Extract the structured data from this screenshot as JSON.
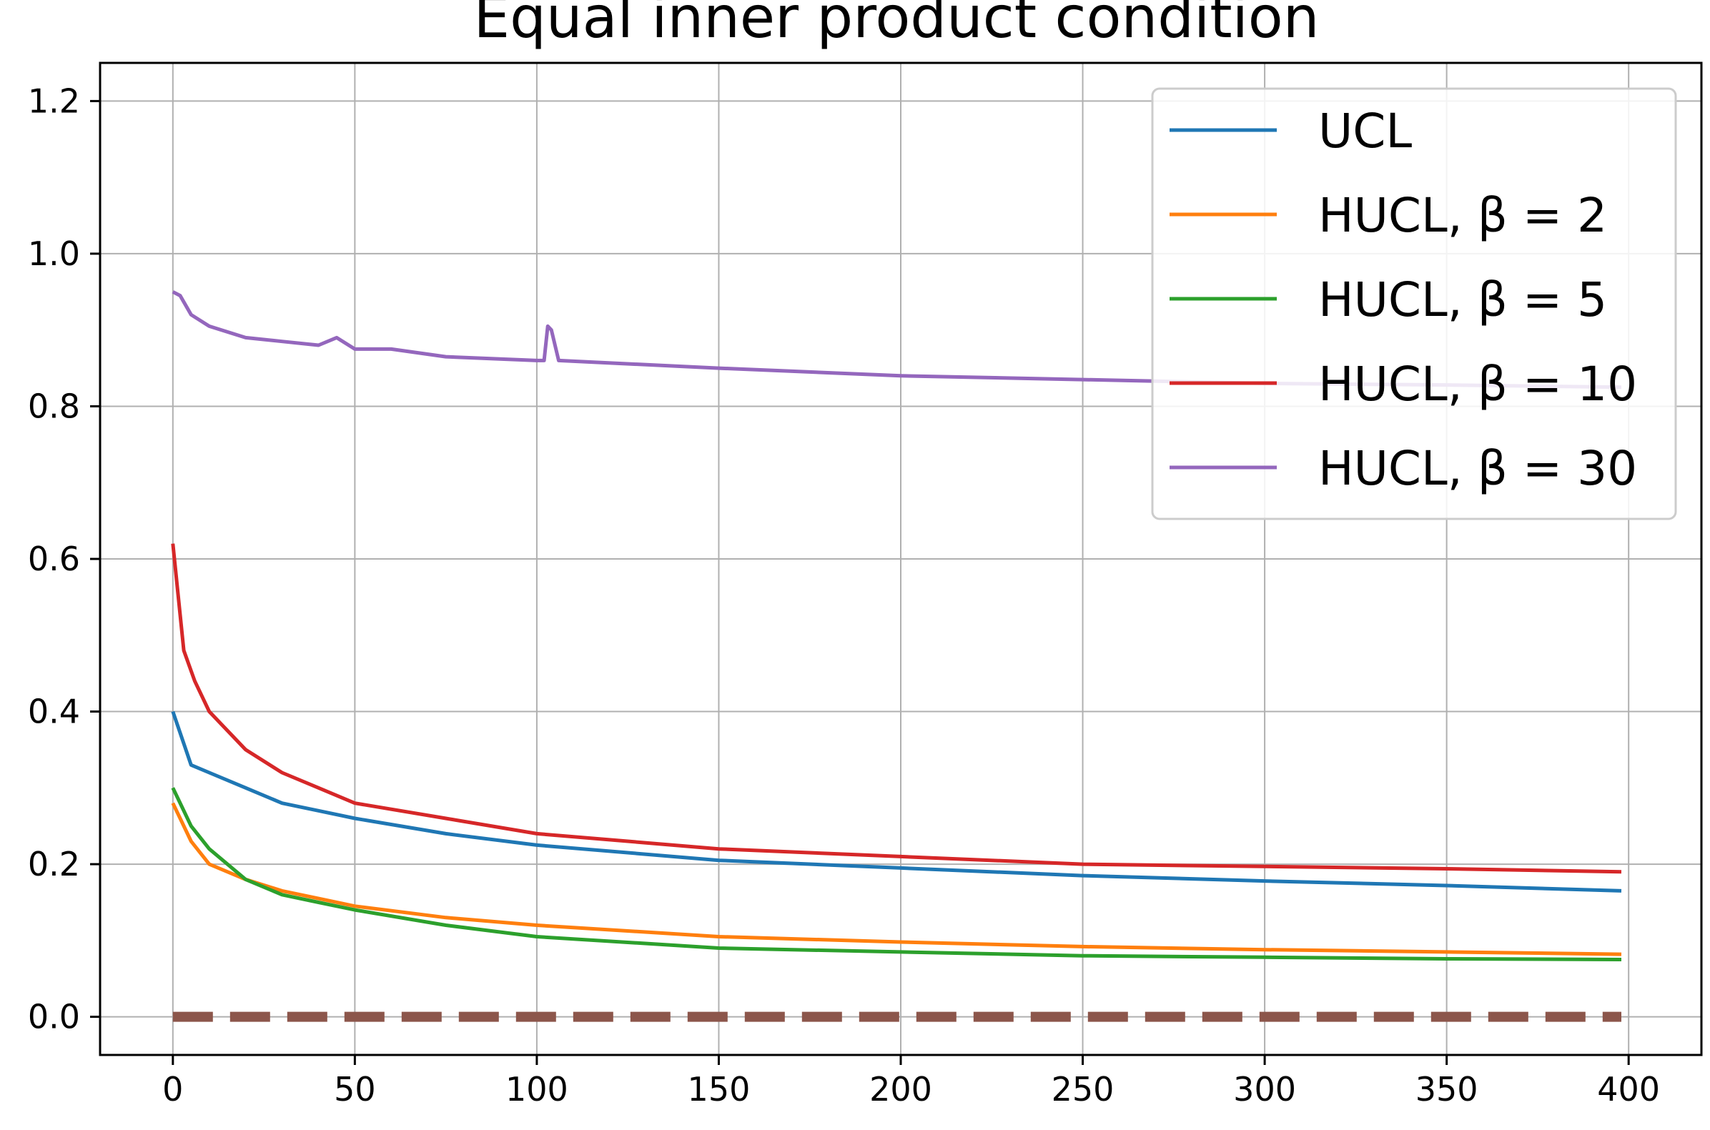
{
  "chart_data": {
    "type": "line",
    "title": "Equal inner product condition",
    "xlabel": "",
    "ylabel": "",
    "xlim": [
      -20,
      420
    ],
    "ylim": [
      -0.05,
      1.25
    ],
    "xticks": [
      0,
      50,
      100,
      150,
      200,
      250,
      300,
      350,
      400
    ],
    "yticks": [
      0.0,
      0.2,
      0.4,
      0.6,
      0.8,
      1.0,
      1.2
    ],
    "xtick_labels": [
      "0",
      "50",
      "100",
      "150",
      "200",
      "250",
      "300",
      "350",
      "400"
    ],
    "ytick_labels": [
      "0.0",
      "0.2",
      "0.4",
      "0.6",
      "0.8",
      "1.0",
      "1.2"
    ],
    "grid": true,
    "legend_position": "top-right",
    "series": [
      {
        "name": "UCL",
        "color": "#1f77b4",
        "x": [
          0,
          5,
          10,
          20,
          30,
          40,
          50,
          75,
          100,
          150,
          200,
          250,
          300,
          350,
          398
        ],
        "values": [
          0.4,
          0.33,
          0.32,
          0.3,
          0.28,
          0.27,
          0.26,
          0.24,
          0.225,
          0.205,
          0.195,
          0.185,
          0.178,
          0.172,
          0.165
        ]
      },
      {
        "name": "HUCL, β = 2",
        "color": "#ff7f0e",
        "x": [
          0,
          5,
          10,
          20,
          30,
          40,
          50,
          75,
          100,
          150,
          200,
          250,
          300,
          350,
          398
        ],
        "values": [
          0.28,
          0.23,
          0.2,
          0.18,
          0.165,
          0.155,
          0.145,
          0.13,
          0.12,
          0.105,
          0.098,
          0.092,
          0.088,
          0.085,
          0.082
        ]
      },
      {
        "name": "HUCL, β = 5",
        "color": "#2ca02c",
        "x": [
          0,
          5,
          10,
          20,
          30,
          40,
          50,
          75,
          100,
          150,
          200,
          250,
          300,
          350,
          398
        ],
        "values": [
          0.3,
          0.25,
          0.22,
          0.18,
          0.16,
          0.15,
          0.14,
          0.12,
          0.105,
          0.09,
          0.085,
          0.08,
          0.078,
          0.076,
          0.075
        ]
      },
      {
        "name": "HUCL, β = 10",
        "color": "#d62728",
        "x": [
          0,
          3,
          6,
          10,
          20,
          30,
          40,
          50,
          75,
          100,
          150,
          200,
          250,
          300,
          350,
          398
        ],
        "values": [
          0.62,
          0.48,
          0.44,
          0.4,
          0.35,
          0.32,
          0.3,
          0.28,
          0.26,
          0.24,
          0.22,
          0.21,
          0.2,
          0.197,
          0.194,
          0.19
        ]
      },
      {
        "name": "HUCL, β = 30",
        "color": "#9467bd",
        "x": [
          0,
          2,
          5,
          10,
          20,
          30,
          40,
          45,
          50,
          60,
          75,
          100,
          102,
          103,
          104,
          106,
          150,
          200,
          250,
          300,
          350,
          398
        ],
        "values": [
          0.95,
          0.945,
          0.92,
          0.905,
          0.89,
          0.885,
          0.88,
          0.89,
          0.875,
          0.875,
          0.865,
          0.86,
          0.86,
          0.905,
          0.9,
          0.86,
          0.85,
          0.84,
          0.835,
          0.83,
          0.828,
          0.825
        ]
      },
      {
        "name": "",
        "color": "#8c564b",
        "dashed": true,
        "x": [
          0,
          398
        ],
        "values": [
          0.0,
          0.0
        ]
      }
    ]
  }
}
